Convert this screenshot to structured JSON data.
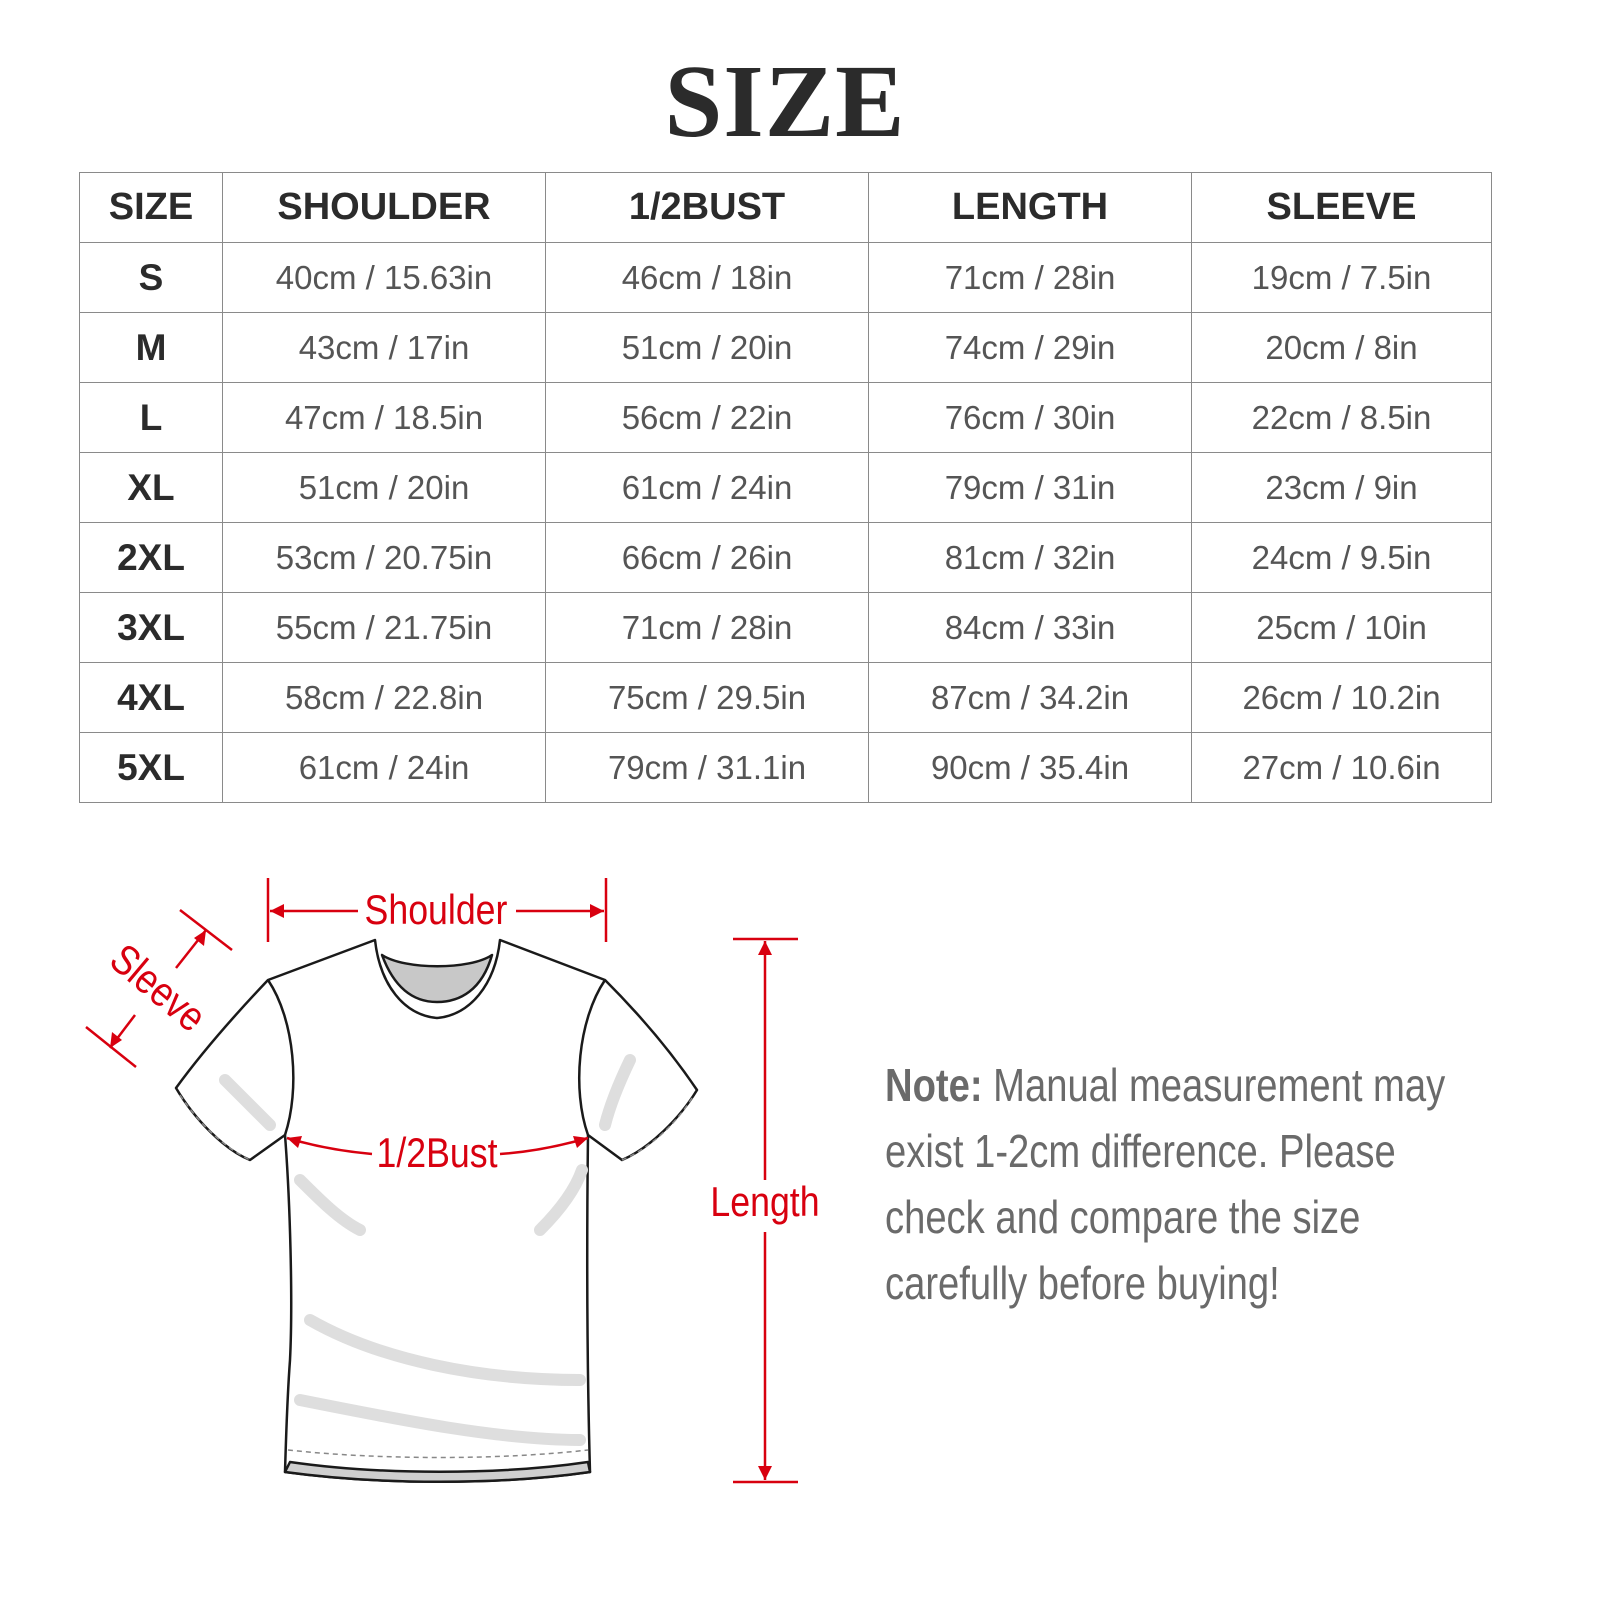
{
  "title": "SIZE",
  "table": {
    "headers": [
      "SIZE",
      "SHOULDER",
      "1/2BUST",
      "LENGTH",
      "SLEEVE"
    ],
    "rows": [
      [
        "S",
        "40cm / 15.63in",
        "46cm / 18in",
        "71cm / 28in",
        "19cm / 7.5in"
      ],
      [
        "M",
        "43cm / 17in",
        "51cm / 20in",
        "74cm / 29in",
        "20cm / 8in"
      ],
      [
        "L",
        "47cm / 18.5in",
        "56cm / 22in",
        "76cm / 30in",
        "22cm / 8.5in"
      ],
      [
        "XL",
        "51cm / 20in",
        "61cm / 24in",
        "79cm / 31in",
        "23cm / 9in"
      ],
      [
        "2XL",
        "53cm / 20.75in",
        "66cm / 26in",
        "81cm / 32in",
        "24cm / 9.5in"
      ],
      [
        "3XL",
        "55cm / 21.75in",
        "71cm / 28in",
        "84cm / 33in",
        "25cm / 10in"
      ],
      [
        "4XL",
        "58cm / 22.8in",
        "75cm / 29.5in",
        "87cm / 34.2in",
        "26cm / 10.2in"
      ],
      [
        "5XL",
        "61cm / 24in",
        "79cm / 31.1in",
        "90cm / 35.4in",
        "27cm / 10.6in"
      ]
    ]
  },
  "diagram": {
    "shoulder": "Shoulder",
    "sleeve": "Sleeve",
    "bust": "1/2Bust",
    "length": "Length",
    "accent_color": "#d8000f"
  },
  "note": {
    "label": "Note:",
    "lines": [
      " Manual measurement may",
      "exist 1-2cm difference. Please",
      "check and compare the size",
      "carefully before buying!"
    ]
  }
}
